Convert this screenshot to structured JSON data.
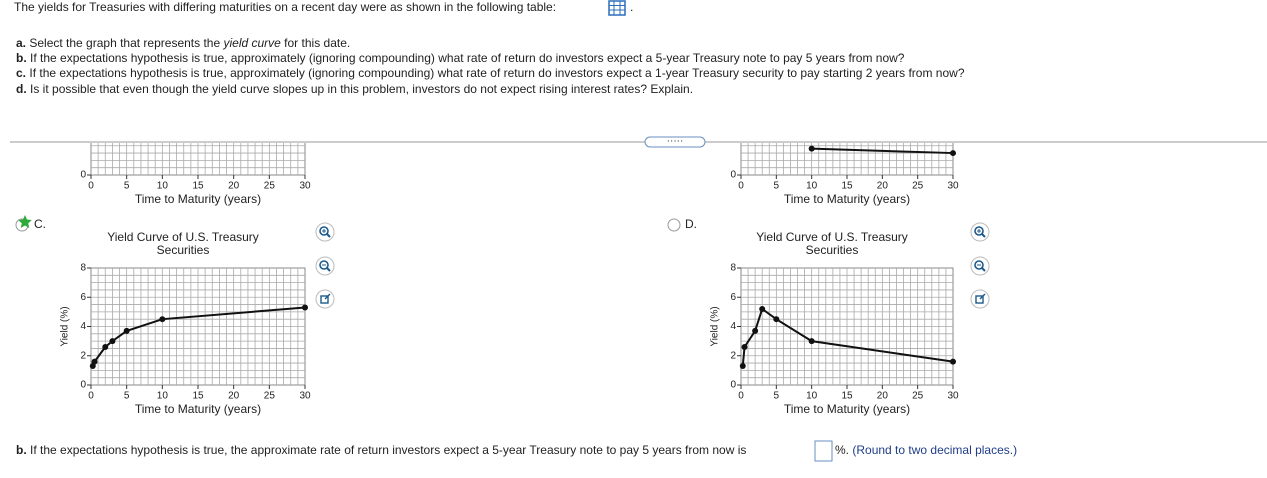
{
  "question": {
    "intro": "The yields for Treasuries with differing maturities on a recent day were as shown in the following table:",
    "intro_end": ".",
    "parts": [
      {
        "label": "a.",
        "text_before": "Select the graph that represents the ",
        "emphasis": "yield curve",
        "text_after": " for this date."
      },
      {
        "label": "b.",
        "text": "If the expectations hypothesis is true, approximately (ignoring compounding) what rate of return do investors expect a 5-year Treasury note to pay 5 years from now?"
      },
      {
        "label": "c.",
        "text": "If the expectations hypothesis is true, approximately (ignoring compounding) what rate of return do investors expect a 1-year Treasury security to pay starting 2 years from now?"
      },
      {
        "label": "d.",
        "text": "Is it possible that even though the yield curve slopes up in this problem, investors do not expect rising interest rates? Explain."
      }
    ]
  },
  "options": [
    {
      "label": "C."
    },
    {
      "label": "D."
    }
  ],
  "charts": [
    {
      "type": "line",
      "xlabel": "Time to Maturity (years)",
      "xlim": [
        0,
        30
      ],
      "ylim": [
        0,
        8
      ],
      "xticks": [
        0,
        5,
        10,
        15,
        20,
        25,
        30
      ],
      "yticks": [
        0
      ],
      "x": [],
      "values": []
    },
    {
      "type": "line",
      "xlabel": "Time to Maturity (years)",
      "xlim": [
        0,
        30
      ],
      "ylim": [
        0,
        8
      ],
      "xticks": [
        0,
        5,
        10,
        15,
        20,
        25,
        30
      ],
      "yticks": [
        0
      ],
      "x": [
        10,
        30
      ],
      "values": [
        1.8,
        1.5
      ]
    },
    {
      "type": "line",
      "title": "Yield Curve of U.S. Treasury Securities",
      "ylabel": "Yield (%)",
      "xlabel": "Time to Maturity (years)",
      "xlim": [
        0,
        30
      ],
      "ylim": [
        0,
        8
      ],
      "xticks": [
        0,
        5,
        10,
        15,
        20,
        25,
        30
      ],
      "yticks": [
        0,
        2,
        4,
        6,
        8
      ],
      "x": [
        0.25,
        0.5,
        2,
        3,
        5,
        10,
        30
      ],
      "values": [
        1.3,
        1.6,
        2.6,
        3.0,
        3.7,
        4.5,
        5.3
      ]
    },
    {
      "type": "line",
      "title": "Yield Curve of U.S. Treasury Securities",
      "ylabel": "Yield (%)",
      "xlabel": "Time to Maturity (years)",
      "xlim": [
        0,
        30
      ],
      "ylim": [
        0,
        8
      ],
      "xticks": [
        0,
        5,
        10,
        15,
        20,
        25,
        30
      ],
      "yticks": [
        0,
        2,
        4,
        6,
        8
      ],
      "x": [
        0.25,
        0.5,
        2,
        3,
        5,
        10,
        30
      ],
      "values": [
        1.3,
        2.6,
        3.7,
        5.2,
        4.5,
        3.0,
        1.6
      ]
    }
  ],
  "answer": {
    "label": "b.",
    "text": "If the expectations hypothesis is true, the approximate rate of return investors expect a 5-year Treasury note to pay 5 years from now is",
    "suffix": "%.",
    "note": "(Round to two decimal places.)"
  }
}
